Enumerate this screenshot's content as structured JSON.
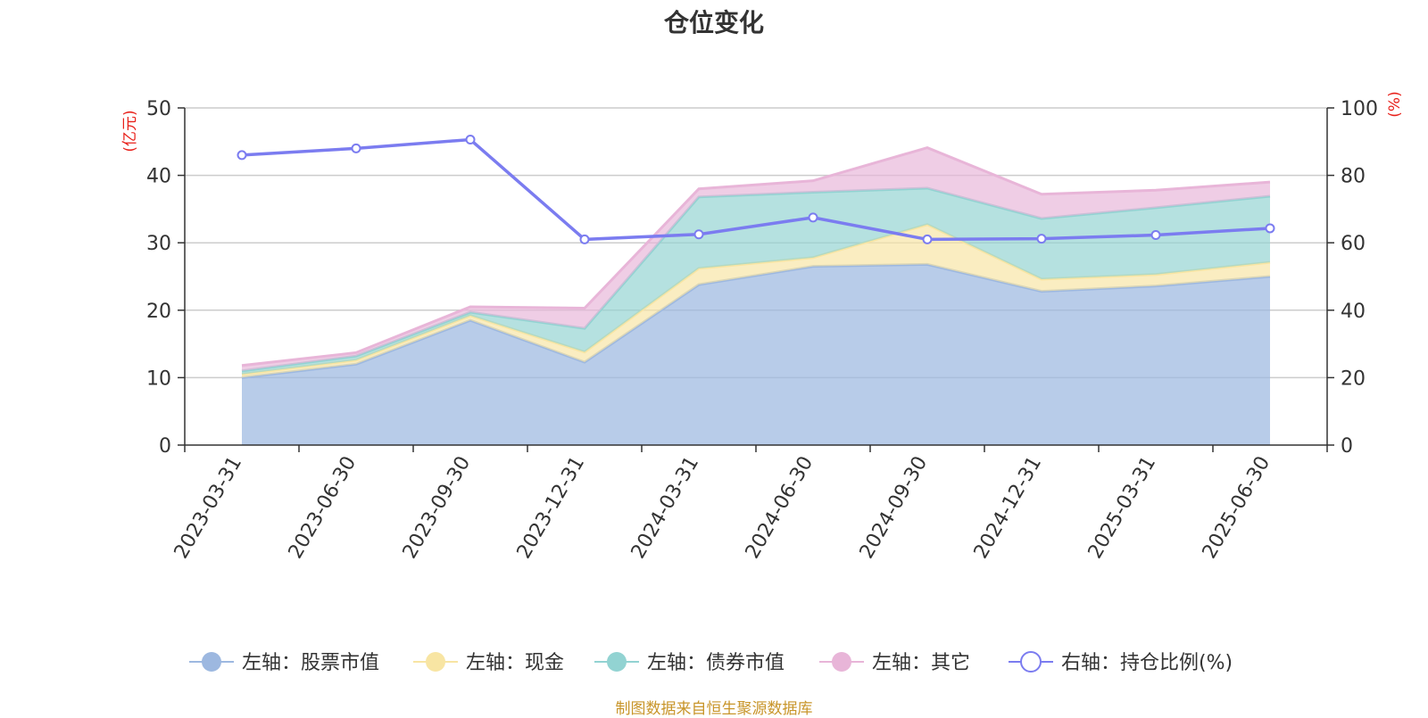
{
  "chart_data": {
    "type": "area",
    "title": "仓位变化",
    "left_axis_unit": "(亿元)",
    "right_axis_unit": "(%)",
    "left_ylim": [
      0,
      50
    ],
    "right_ylim": [
      0,
      100
    ],
    "left_ticks": [
      0,
      10,
      20,
      30,
      40,
      50
    ],
    "right_ticks": [
      0,
      20,
      40,
      60,
      80,
      100
    ],
    "categories": [
      "2023-03-31",
      "2023-06-30",
      "2023-09-30",
      "2023-12-31",
      "2024-03-31",
      "2024-06-30",
      "2024-09-30",
      "2024-12-31",
      "2025-03-31",
      "2025-06-30"
    ],
    "grid": true,
    "stacked": true,
    "legend_position": "bottom",
    "series": [
      {
        "name": "左轴：股票市值",
        "axis": "left",
        "kind": "area",
        "color": "#9db8e0",
        "values": [
          10.0,
          12.0,
          18.5,
          12.3,
          23.8,
          26.5,
          26.8,
          22.8,
          23.6,
          25.0
        ]
      },
      {
        "name": "左轴：现金",
        "axis": "left",
        "kind": "area",
        "color": "#f8e5a3",
        "values": [
          0.5,
          0.6,
          0.7,
          1.5,
          2.4,
          1.3,
          5.9,
          1.8,
          1.7,
          2.1
        ]
      },
      {
        "name": "左轴：债券市值",
        "axis": "left",
        "kind": "area",
        "color": "#92d3d2",
        "values": [
          0.5,
          0.6,
          0.5,
          3.5,
          10.6,
          9.7,
          5.4,
          9.0,
          9.9,
          9.8
        ]
      },
      {
        "name": "左轴：其它",
        "axis": "left",
        "kind": "area",
        "color": "#e8b5d8",
        "values": [
          0.8,
          0.5,
          0.8,
          3.0,
          1.2,
          1.7,
          6.0,
          3.6,
          2.6,
          2.1
        ]
      },
      {
        "name": "右轴：持仓比例(%)",
        "axis": "right",
        "kind": "line",
        "color": "#7b7cf0",
        "values": [
          86,
          88,
          90.6,
          61,
          62.5,
          67.5,
          61,
          61.2,
          62.3,
          64.3
        ]
      }
    ]
  },
  "footer": {
    "source": "制图数据来自恒生聚源数据库"
  }
}
